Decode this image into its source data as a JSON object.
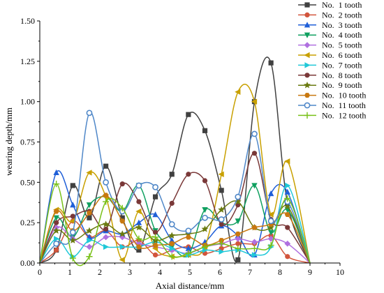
{
  "chart_data": {
    "type": "line",
    "xlabel": "Axial distance/mm",
    "ylabel": "wearing depth/mm",
    "xlim": [
      0,
      10
    ],
    "ylim": [
      0,
      1.5
    ],
    "xticks": [
      0,
      1,
      2,
      3,
      4,
      5,
      6,
      7,
      8,
      9,
      10
    ],
    "xtick_labels": [
      "0",
      "1",
      "2",
      "3",
      "4",
      "5",
      "6",
      "7",
      "8",
      "9",
      "10"
    ],
    "yticks": [
      0,
      0.25,
      0.5,
      0.75,
      1.0,
      1.25,
      1.5
    ],
    "ytick_labels": [
      "0.00",
      "0.25",
      "0.50",
      "0.75",
      "1.00",
      "1.25",
      "1.50"
    ],
    "grid": false,
    "legend_position": "top-right",
    "series": [
      {
        "name": "No.  1 tooth",
        "color": "#404040",
        "marker": "square",
        "x": [
          0,
          0.55,
          1.1,
          1.65,
          2.2,
          2.75,
          3.3,
          3.85,
          4.4,
          4.95,
          5.5,
          6.05,
          6.6,
          7.15,
          7.7,
          8.25,
          9
        ],
        "y": [
          0,
          0.08,
          0.48,
          0.28,
          0.6,
          0.28,
          0.08,
          0.41,
          0.55,
          0.92,
          0.82,
          0.45,
          0.02,
          1.0,
          1.24,
          0.37,
          0
        ]
      },
      {
        "name": "No.  2 tooth",
        "color": "#d2553c",
        "marker": "circle",
        "x": [
          0,
          0.55,
          1.1,
          1.65,
          2.2,
          2.75,
          3.3,
          3.85,
          4.4,
          4.95,
          5.5,
          6.05,
          6.6,
          7.15,
          7.7,
          8.25,
          9
        ],
        "y": [
          0,
          0.08,
          0.26,
          0.16,
          0.2,
          0.1,
          0.14,
          0.05,
          0.08,
          0.1,
          0.06,
          0.09,
          0.12,
          0.12,
          0.17,
          0.04,
          0
        ]
      },
      {
        "name": "No.  3 tooth",
        "color": "#1f5fd8",
        "marker": "triangle-up",
        "x": [
          0,
          0.55,
          1.1,
          1.65,
          2.2,
          2.75,
          3.3,
          3.85,
          4.4,
          4.95,
          5.5,
          6.05,
          6.6,
          7.15,
          7.7,
          8.25,
          9
        ],
        "y": [
          0,
          0.56,
          0.36,
          0.16,
          0.2,
          0.18,
          0.25,
          0.3,
          0.14,
          0.09,
          0.13,
          0.23,
          0.17,
          0.05,
          0.43,
          0.44,
          0
        ]
      },
      {
        "name": "No.  4 tooth",
        "color": "#10a060",
        "marker": "triangle-down",
        "x": [
          0,
          0.55,
          1.1,
          1.65,
          2.2,
          2.75,
          3.3,
          3.85,
          4.4,
          4.95,
          5.5,
          6.05,
          6.6,
          7.15,
          7.7,
          8.25,
          9
        ],
        "y": [
          0,
          0.28,
          0.16,
          0.36,
          0.41,
          0.32,
          0.48,
          0.2,
          0.1,
          0.05,
          0.33,
          0.25,
          0.26,
          0.48,
          0.19,
          0.33,
          0
        ]
      },
      {
        "name": "No.  5 tooth",
        "color": "#b070e0",
        "marker": "diamond",
        "x": [
          0,
          0.55,
          1.1,
          1.65,
          2.2,
          2.75,
          3.3,
          3.85,
          4.4,
          4.95,
          5.5,
          6.05,
          6.6,
          7.15,
          7.7,
          8.25,
          9
        ],
        "y": [
          0,
          0.22,
          0.15,
          0.1,
          0.16,
          0.16,
          0.12,
          0.1,
          0.08,
          0.06,
          0.1,
          0.12,
          0.15,
          0.13,
          0.15,
          0.12,
          0
        ]
      },
      {
        "name": "No.  6 tooth",
        "color": "#c8a000",
        "marker": "triangle-left",
        "x": [
          0,
          0.55,
          1.1,
          1.65,
          2.2,
          2.75,
          3.3,
          3.85,
          4.4,
          4.95,
          5.5,
          6.05,
          6.6,
          7.15,
          7.7,
          8.25,
          9
        ],
        "y": [
          0,
          0.33,
          0.26,
          0.56,
          0.41,
          0.02,
          0.32,
          0.09,
          0.04,
          0.05,
          0.1,
          0.55,
          1.06,
          1.0,
          0.3,
          0.63,
          0
        ]
      },
      {
        "name": "No.  7 tooth",
        "color": "#20c8d8",
        "marker": "triangle-right",
        "x": [
          0,
          0.55,
          1.1,
          1.65,
          2.2,
          2.75,
          3.3,
          3.85,
          4.4,
          4.95,
          5.5,
          6.05,
          6.6,
          7.15,
          7.7,
          8.25,
          9
        ],
        "y": [
          0,
          0.15,
          0.04,
          0.14,
          0.1,
          0.1,
          0.1,
          0.13,
          0.09,
          0.05,
          0.08,
          0.07,
          0.08,
          0.05,
          0.1,
          0.48,
          0
        ]
      },
      {
        "name": "No.  8 tooth",
        "color": "#7a3838",
        "marker": "circle",
        "x": [
          0,
          0.55,
          1.1,
          1.65,
          2.2,
          2.75,
          3.3,
          3.85,
          4.4,
          4.95,
          5.5,
          6.05,
          6.6,
          7.15,
          7.7,
          8.25,
          9
        ],
        "y": [
          0,
          0.25,
          0.29,
          0.32,
          0.21,
          0.49,
          0.38,
          0.19,
          0.37,
          0.55,
          0.51,
          0.24,
          0.36,
          0.68,
          0.27,
          0.22,
          0
        ]
      },
      {
        "name": "No.  9 tooth",
        "color": "#6a7a10",
        "marker": "star",
        "x": [
          0,
          0.55,
          1.1,
          1.65,
          2.2,
          2.75,
          3.3,
          3.85,
          4.4,
          4.95,
          5.5,
          6.05,
          6.6,
          7.15,
          7.7,
          8.25,
          9
        ],
        "y": [
          0,
          0.2,
          0.14,
          0.2,
          0.24,
          0.18,
          0.22,
          0.14,
          0.17,
          0.18,
          0.21,
          0.33,
          0.38,
          0.22,
          0.22,
          0.35,
          0
        ]
      },
      {
        "name": "No.  10 tooth",
        "color": "#c87810",
        "marker": "hexagon",
        "x": [
          0,
          0.55,
          1.1,
          1.65,
          2.2,
          2.75,
          3.3,
          3.85,
          4.4,
          4.95,
          5.5,
          6.05,
          6.6,
          7.15,
          7.7,
          8.25,
          9
        ],
        "y": [
          0,
          0.32,
          0.2,
          0.31,
          0.42,
          0.26,
          0.1,
          0.11,
          0.12,
          0.16,
          0.11,
          0.14,
          0.18,
          0.22,
          0.24,
          0.3,
          0
        ]
      },
      {
        "name": "No.  11 tooth",
        "color": "#4f87c8",
        "marker": "circle-hollow",
        "x": [
          0,
          0.55,
          1.1,
          1.65,
          2.2,
          2.75,
          3.3,
          3.85,
          4.4,
          4.95,
          5.5,
          6.05,
          6.6,
          7.15,
          7.7,
          8.25,
          9
        ],
        "y": [
          0,
          0.12,
          0.19,
          0.93,
          0.5,
          0.32,
          0.48,
          0.47,
          0.24,
          0.2,
          0.28,
          0.27,
          0.41,
          0.8,
          0.26,
          0.38,
          0
        ]
      },
      {
        "name": "No.  12 tooth",
        "color": "#78c018",
        "marker": "plus",
        "x": [
          0,
          0.55,
          1.1,
          1.65,
          2.2,
          2.75,
          3.3,
          3.85,
          4.4,
          4.95,
          5.5,
          6.05,
          6.6,
          7.15,
          7.7,
          8.25,
          9
        ],
        "y": [
          0,
          0.49,
          0.03,
          0.04,
          0.38,
          0.34,
          0.15,
          0.16,
          0.04,
          0.06,
          0.1,
          0.12,
          0.09,
          0.09,
          0.11,
          0.4,
          0
        ]
      }
    ]
  }
}
